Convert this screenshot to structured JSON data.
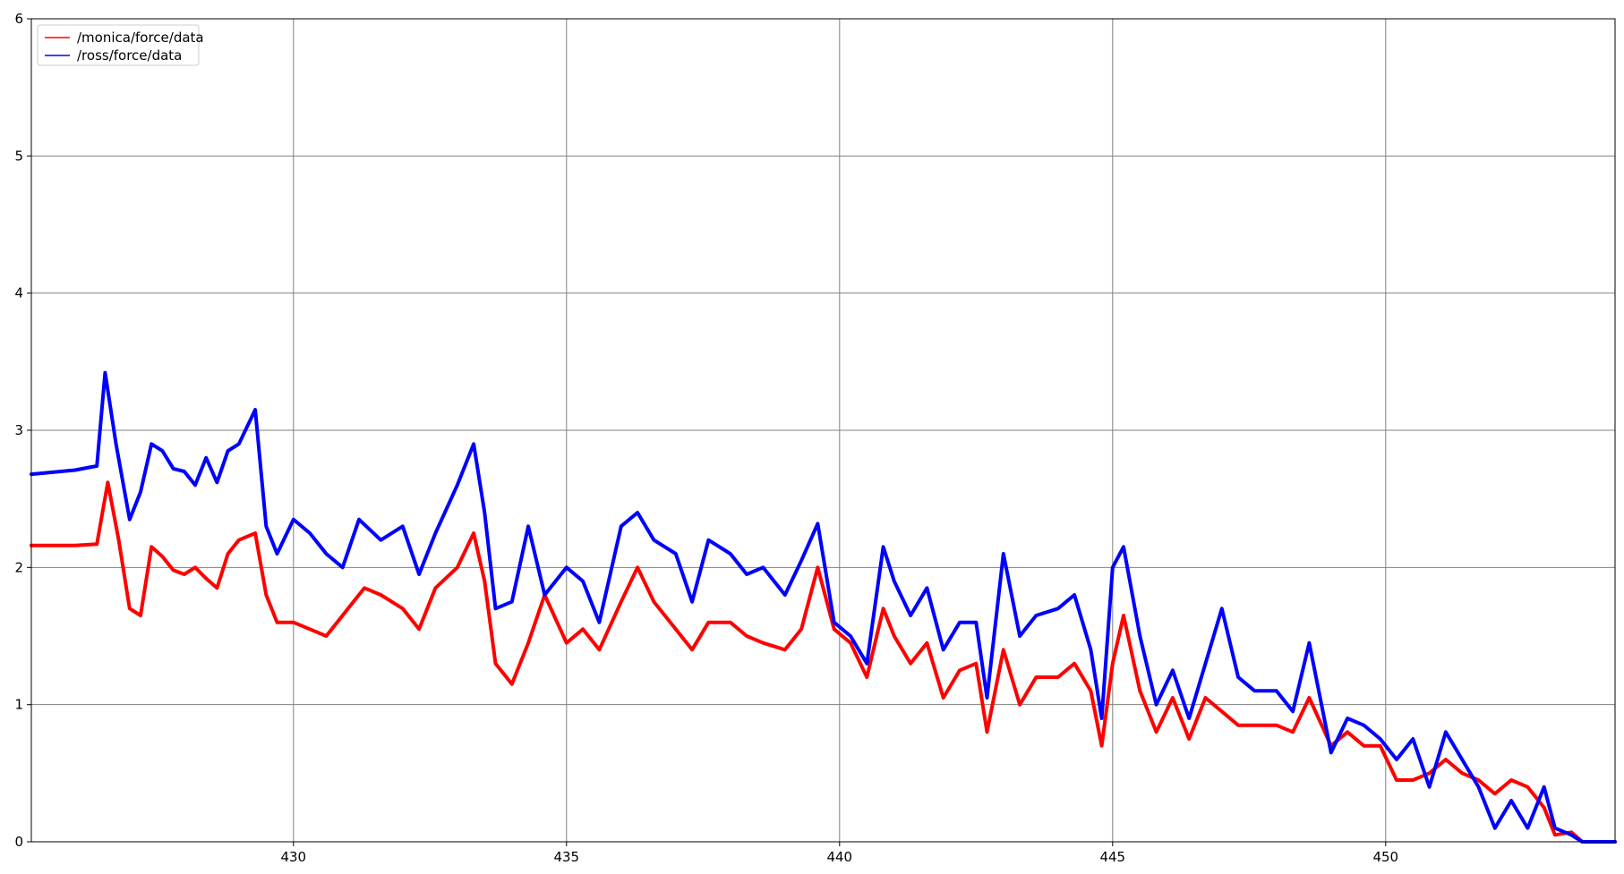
{
  "chart_data": {
    "type": "line",
    "title": "",
    "xlabel": "",
    "ylabel": "",
    "xlim": [
      425.2,
      454.2
    ],
    "ylim": [
      0,
      6
    ],
    "xticks": [
      430,
      435,
      440,
      445,
      450
    ],
    "yticks": [
      0,
      1,
      2,
      3,
      4,
      5,
      6
    ],
    "grid": true,
    "legend_position": "top-left",
    "series": [
      {
        "name": "/monica/force/data",
        "color": "#ff0000",
        "points": [
          [
            425.2,
            2.16
          ],
          [
            426.0,
            2.16
          ],
          [
            426.4,
            2.17
          ],
          [
            426.6,
            2.62
          ],
          [
            426.8,
            2.2
          ],
          [
            427.0,
            1.7
          ],
          [
            427.2,
            1.65
          ],
          [
            427.4,
            2.15
          ],
          [
            427.6,
            2.08
          ],
          [
            427.8,
            1.98
          ],
          [
            428.0,
            1.95
          ],
          [
            428.2,
            2.0
          ],
          [
            428.4,
            1.92
          ],
          [
            428.6,
            1.85
          ],
          [
            428.8,
            2.1
          ],
          [
            429.0,
            2.2
          ],
          [
            429.3,
            2.25
          ],
          [
            429.5,
            1.8
          ],
          [
            429.7,
            1.6
          ],
          [
            430.0,
            1.6
          ],
          [
            430.3,
            1.55
          ],
          [
            430.6,
            1.5
          ],
          [
            431.0,
            1.7
          ],
          [
            431.3,
            1.85
          ],
          [
            431.6,
            1.8
          ],
          [
            432.0,
            1.7
          ],
          [
            432.3,
            1.55
          ],
          [
            432.6,
            1.85
          ],
          [
            433.0,
            2.0
          ],
          [
            433.3,
            2.25
          ],
          [
            433.5,
            1.9
          ],
          [
            433.7,
            1.3
          ],
          [
            434.0,
            1.15
          ],
          [
            434.3,
            1.45
          ],
          [
            434.6,
            1.8
          ],
          [
            435.0,
            1.45
          ],
          [
            435.3,
            1.55
          ],
          [
            435.6,
            1.4
          ],
          [
            436.0,
            1.75
          ],
          [
            436.3,
            2.0
          ],
          [
            436.6,
            1.75
          ],
          [
            437.0,
            1.55
          ],
          [
            437.3,
            1.4
          ],
          [
            437.6,
            1.6
          ],
          [
            438.0,
            1.6
          ],
          [
            438.3,
            1.5
          ],
          [
            438.6,
            1.45
          ],
          [
            439.0,
            1.4
          ],
          [
            439.3,
            1.55
          ],
          [
            439.6,
            2.0
          ],
          [
            439.9,
            1.55
          ],
          [
            440.2,
            1.45
          ],
          [
            440.5,
            1.2
          ],
          [
            440.8,
            1.7
          ],
          [
            441.0,
            1.5
          ],
          [
            441.3,
            1.3
          ],
          [
            441.6,
            1.45
          ],
          [
            441.9,
            1.05
          ],
          [
            442.2,
            1.25
          ],
          [
            442.5,
            1.3
          ],
          [
            442.7,
            0.8
          ],
          [
            443.0,
            1.4
          ],
          [
            443.3,
            1.0
          ],
          [
            443.6,
            1.2
          ],
          [
            444.0,
            1.2
          ],
          [
            444.3,
            1.3
          ],
          [
            444.6,
            1.1
          ],
          [
            444.8,
            0.7
          ],
          [
            445.0,
            1.3
          ],
          [
            445.2,
            1.65
          ],
          [
            445.5,
            1.1
          ],
          [
            445.8,
            0.8
          ],
          [
            446.1,
            1.05
          ],
          [
            446.4,
            0.75
          ],
          [
            446.7,
            1.05
          ],
          [
            447.0,
            0.95
          ],
          [
            447.3,
            0.85
          ],
          [
            447.6,
            0.85
          ],
          [
            448.0,
            0.85
          ],
          [
            448.3,
            0.8
          ],
          [
            448.6,
            1.05
          ],
          [
            449.0,
            0.7
          ],
          [
            449.3,
            0.8
          ],
          [
            449.6,
            0.7
          ],
          [
            449.9,
            0.7
          ],
          [
            450.2,
            0.45
          ],
          [
            450.5,
            0.45
          ],
          [
            450.8,
            0.5
          ],
          [
            451.1,
            0.6
          ],
          [
            451.4,
            0.5
          ],
          [
            451.7,
            0.45
          ],
          [
            452.0,
            0.35
          ],
          [
            452.3,
            0.45
          ],
          [
            452.6,
            0.4
          ],
          [
            452.9,
            0.25
          ],
          [
            453.1,
            0.05
          ],
          [
            453.4,
            0.07
          ],
          [
            453.6,
            0.0
          ],
          [
            454.2,
            0.0
          ]
        ]
      },
      {
        "name": "/ross/force/data",
        "color": "#0000ff",
        "points": [
          [
            425.2,
            2.68
          ],
          [
            426.0,
            2.71
          ],
          [
            426.4,
            2.74
          ],
          [
            426.55,
            3.42
          ],
          [
            426.75,
            2.9
          ],
          [
            427.0,
            2.35
          ],
          [
            427.2,
            2.55
          ],
          [
            427.4,
            2.9
          ],
          [
            427.6,
            2.85
          ],
          [
            427.8,
            2.72
          ],
          [
            428.0,
            2.7
          ],
          [
            428.2,
            2.6
          ],
          [
            428.4,
            2.8
          ],
          [
            428.6,
            2.62
          ],
          [
            428.8,
            2.85
          ],
          [
            429.0,
            2.9
          ],
          [
            429.3,
            3.15
          ],
          [
            429.5,
            2.3
          ],
          [
            429.7,
            2.1
          ],
          [
            430.0,
            2.35
          ],
          [
            430.3,
            2.25
          ],
          [
            430.6,
            2.1
          ],
          [
            430.9,
            2.0
          ],
          [
            431.2,
            2.35
          ],
          [
            431.6,
            2.2
          ],
          [
            432.0,
            2.3
          ],
          [
            432.3,
            1.95
          ],
          [
            432.6,
            2.25
          ],
          [
            433.0,
            2.6
          ],
          [
            433.3,
            2.9
          ],
          [
            433.5,
            2.4
          ],
          [
            433.7,
            1.7
          ],
          [
            434.0,
            1.75
          ],
          [
            434.3,
            2.3
          ],
          [
            434.6,
            1.8
          ],
          [
            435.0,
            2.0
          ],
          [
            435.3,
            1.9
          ],
          [
            435.6,
            1.6
          ],
          [
            436.0,
            2.3
          ],
          [
            436.3,
            2.4
          ],
          [
            436.6,
            2.2
          ],
          [
            437.0,
            2.1
          ],
          [
            437.3,
            1.75
          ],
          [
            437.6,
            2.2
          ],
          [
            438.0,
            2.1
          ],
          [
            438.3,
            1.95
          ],
          [
            438.6,
            2.0
          ],
          [
            439.0,
            1.8
          ],
          [
            439.3,
            2.05
          ],
          [
            439.6,
            2.32
          ],
          [
            439.9,
            1.6
          ],
          [
            440.2,
            1.5
          ],
          [
            440.5,
            1.3
          ],
          [
            440.8,
            2.15
          ],
          [
            441.0,
            1.9
          ],
          [
            441.3,
            1.65
          ],
          [
            441.6,
            1.85
          ],
          [
            441.9,
            1.4
          ],
          [
            442.2,
            1.6
          ],
          [
            442.5,
            1.6
          ],
          [
            442.7,
            1.05
          ],
          [
            443.0,
            2.1
          ],
          [
            443.3,
            1.5
          ],
          [
            443.6,
            1.65
          ],
          [
            444.0,
            1.7
          ],
          [
            444.3,
            1.8
          ],
          [
            444.6,
            1.4
          ],
          [
            444.8,
            0.9
          ],
          [
            445.0,
            2.0
          ],
          [
            445.2,
            2.15
          ],
          [
            445.5,
            1.5
          ],
          [
            445.8,
            1.0
          ],
          [
            446.1,
            1.25
          ],
          [
            446.4,
            0.9
          ],
          [
            446.7,
            1.3
          ],
          [
            447.0,
            1.7
          ],
          [
            447.3,
            1.2
          ],
          [
            447.6,
            1.1
          ],
          [
            448.0,
            1.1
          ],
          [
            448.3,
            0.95
          ],
          [
            448.6,
            1.45
          ],
          [
            449.0,
            0.65
          ],
          [
            449.3,
            0.9
          ],
          [
            449.6,
            0.85
          ],
          [
            449.9,
            0.75
          ],
          [
            450.2,
            0.6
          ],
          [
            450.5,
            0.75
          ],
          [
            450.8,
            0.4
          ],
          [
            451.1,
            0.8
          ],
          [
            451.4,
            0.6
          ],
          [
            451.7,
            0.4
          ],
          [
            452.0,
            0.1
          ],
          [
            452.3,
            0.3
          ],
          [
            452.6,
            0.1
          ],
          [
            452.9,
            0.4
          ],
          [
            453.1,
            0.1
          ],
          [
            453.4,
            0.05
          ],
          [
            453.6,
            0.0
          ],
          [
            454.2,
            0.0
          ]
        ]
      }
    ]
  },
  "colors": {
    "grid": "#808080",
    "axes": "#000000",
    "background": "#ffffff"
  }
}
